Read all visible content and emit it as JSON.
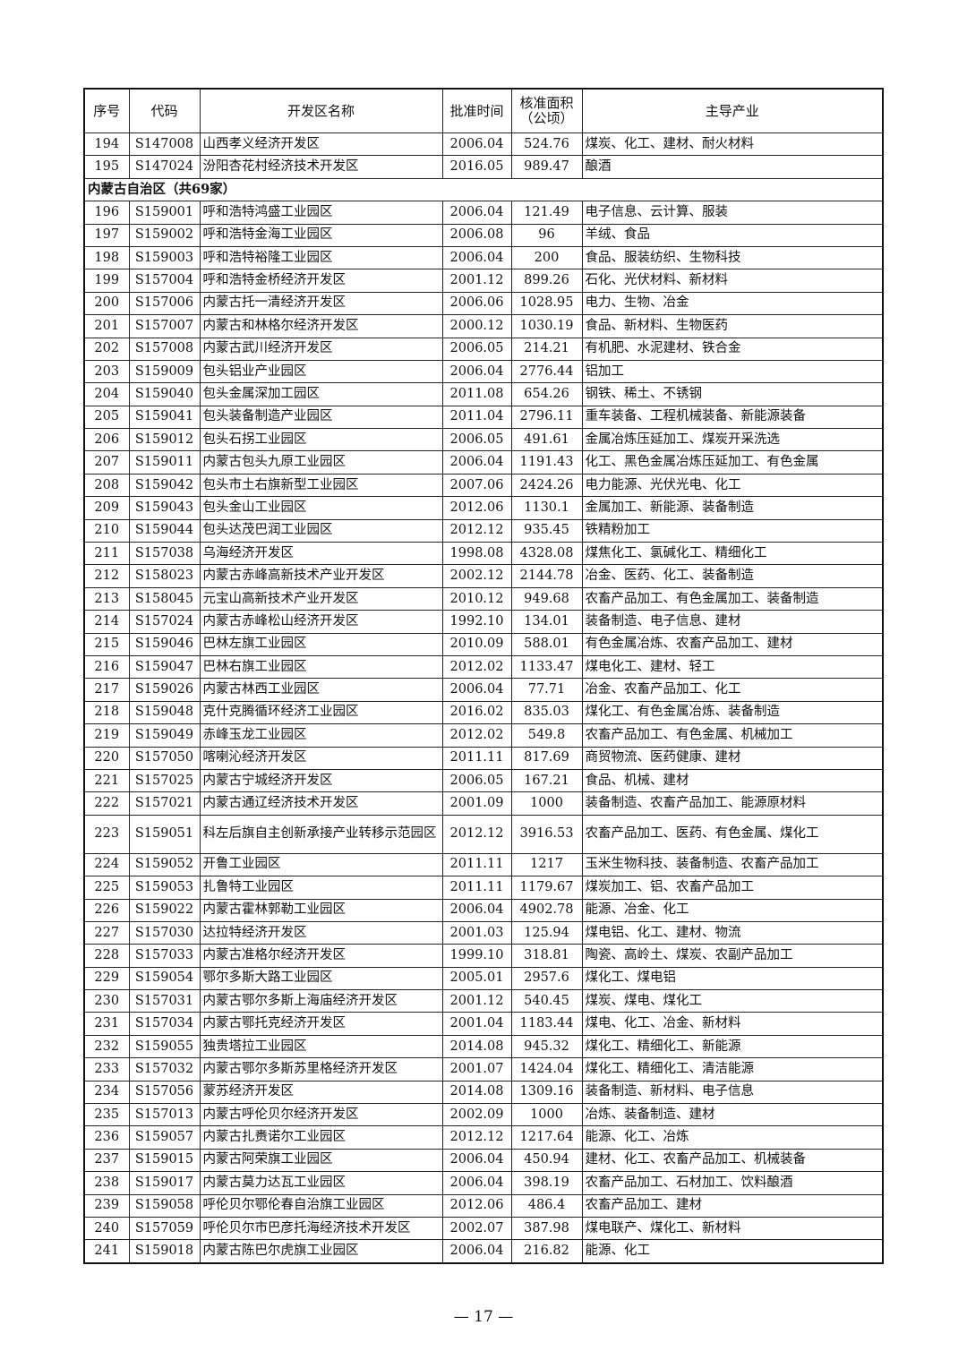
{
  "headers": [
    "序号",
    "代码",
    "开发区名称",
    "批准时间",
    "核准面积（公顷）",
    "主导产业"
  ],
  "rows": [
    {
      "no": "194",
      "code": "S147008",
      "name": "山西孝义经济开发区",
      "date": "2006.04",
      "area": "524.76",
      "industry": "煤炭、化工、建材、耐火材料"
    },
    {
      "no": "195",
      "code": "S147024",
      "name": "汾阳杏花村经济技术开发区",
      "date": "2016.05",
      "area": "989.47",
      "industry": "酿酒"
    },
    {
      "section": "内蒙古自治区（共69家）"
    },
    {
      "no": "196",
      "code": "S159001",
      "name": "呼和浩特鸿盛工业园区",
      "date": "2006.04",
      "area": "121.49",
      "industry": "电子信息、云计算、服装"
    },
    {
      "no": "197",
      "code": "S159002",
      "name": "呼和浩特金海工业园区",
      "date": "2006.08",
      "area": "96",
      "industry": "羊绒、食品"
    },
    {
      "no": "198",
      "code": "S159003",
      "name": "呼和浩特裕隆工业园区",
      "date": "2006.04",
      "area": "200",
      "industry": "食品、服装纺织、生物科技"
    },
    {
      "no": "199",
      "code": "S157004",
      "name": "呼和浩特金桥经济开发区",
      "date": "2001.12",
      "area": "899.26",
      "industry": "石化、光伏材料、新材料"
    },
    {
      "no": "200",
      "code": "S157006",
      "name": "内蒙古托一清经济开发区",
      "date": "2006.06",
      "area": "1028.95",
      "industry": "电力、生物、冶金"
    },
    {
      "no": "201",
      "code": "S157007",
      "name": "内蒙古和林格尔经济开发区",
      "date": "2000.12",
      "area": "1030.19",
      "industry": "食品、新材料、生物医药"
    },
    {
      "no": "202",
      "code": "S157008",
      "name": "内蒙古武川经济开发区",
      "date": "2006.05",
      "area": "214.21",
      "industry": "有机肥、水泥建材、铁合金"
    },
    {
      "no": "203",
      "code": "S159009",
      "name": "包头铝业产业园区",
      "date": "2006.04",
      "area": "2776.44",
      "industry": "铝加工"
    },
    {
      "no": "204",
      "code": "S159040",
      "name": "包头金属深加工园区",
      "date": "2011.08",
      "area": "654.26",
      "industry": "钢铁、稀土、不锈钢"
    },
    {
      "no": "205",
      "code": "S159041",
      "name": "包头装备制造产业园区",
      "date": "2011.04",
      "area": "2796.11",
      "industry": "重车装备、工程机械装备、新能源装备"
    },
    {
      "no": "206",
      "code": "S159012",
      "name": "包头石拐工业园区",
      "date": "2006.05",
      "area": "491.61",
      "industry": "金属冶炼压延加工、煤炭开采洗选"
    },
    {
      "no": "207",
      "code": "S159011",
      "name": "内蒙古包头九原工业园区",
      "date": "2006.04",
      "area": "1191.43",
      "industry": "化工、黑色金属冶炼压延加工、有色金属"
    },
    {
      "no": "208",
      "code": "S159042",
      "name": "包头市土右旗新型工业园区",
      "date": "2007.06",
      "area": "2424.26",
      "industry": "电力能源、光伏光电、化工"
    },
    {
      "no": "209",
      "code": "S159043",
      "name": "包头金山工业园区",
      "date": "2012.06",
      "area": "1130.1",
      "industry": "金属加工、新能源、装备制造"
    },
    {
      "no": "210",
      "code": "S159044",
      "name": "包头达茂巴润工业园区",
      "date": "2012.12",
      "area": "935.45",
      "industry": "铁精粉加工"
    },
    {
      "no": "211",
      "code": "S157038",
      "name": "乌海经济开发区",
      "date": "1998.08",
      "area": "4328.08",
      "industry": "煤焦化工、氯碱化工、精细化工"
    },
    {
      "no": "212",
      "code": "S158023",
      "name": "内蒙古赤峰高新技术产业开发区",
      "date": "2002.12",
      "area": "2144.78",
      "industry": "冶金、医药、化工、装备制造"
    },
    {
      "no": "213",
      "code": "S158045",
      "name": "元宝山高新技术产业开发区",
      "date": "2010.12",
      "area": "949.68",
      "industry": "农畜产品加工、有色金属加工、装备制造"
    },
    {
      "no": "214",
      "code": "S157024",
      "name": "内蒙古赤峰松山经济开发区",
      "date": "1992.10",
      "area": "134.01",
      "industry": "装备制造、电子信息、建材"
    },
    {
      "no": "215",
      "code": "S159046",
      "name": "巴林左旗工业园区",
      "date": "2010.09",
      "area": "588.01",
      "industry": "有色金属冶炼、农畜产品加工、建材"
    },
    {
      "no": "216",
      "code": "S159047",
      "name": "巴林右旗工业园区",
      "date": "2012.02",
      "area": "1133.47",
      "industry": "煤电化工、建材、轻工"
    },
    {
      "no": "217",
      "code": "S159026",
      "name": "内蒙古林西工业园区",
      "date": "2006.04",
      "area": "77.71",
      "industry": "冶金、农畜产品加工、化工"
    },
    {
      "no": "218",
      "code": "S159048",
      "name": "克什克腾循环经济工业园区",
      "date": "2016.02",
      "area": "835.03",
      "industry": "煤化工、有色金属冶炼、装备制造"
    },
    {
      "no": "219",
      "code": "S159049",
      "name": "赤峰玉龙工业园区",
      "date": "2012.02",
      "area": "549.8",
      "industry": "农畜产品加工、有色金属、机械加工"
    },
    {
      "no": "220",
      "code": "S157050",
      "name": "喀喇沁经济开发区",
      "date": "2011.11",
      "area": "817.69",
      "industry": "商贸物流、医药健康、建材"
    },
    {
      "no": "221",
      "code": "S157025",
      "name": "内蒙古宁城经济开发区",
      "date": "2006.05",
      "area": "167.21",
      "industry": "食品、机械、建材"
    },
    {
      "no": "222",
      "code": "S157021",
      "name": "内蒙古通辽经济技术开发区",
      "date": "2001.09",
      "area": "1000",
      "industry": "装备制造、农畜产品加工、能源原材料"
    },
    {
      "no": "223",
      "code": "S159051",
      "name": "科左后旗自主创新承接产业转移示范园区",
      "date": "2012.12",
      "area": "3916.53",
      "industry": "农畜产品加工、医药、有色金属、煤化工",
      "wrap": true
    },
    {
      "no": "224",
      "code": "S159052",
      "name": "开鲁工业园区",
      "date": "2011.11",
      "area": "1217",
      "industry": "玉米生物科技、装备制造、农畜产品加工"
    },
    {
      "no": "225",
      "code": "S159053",
      "name": "扎鲁特工业园区",
      "date": "2011.11",
      "area": "1179.67",
      "industry": "煤炭加工、铝、农畜产品加工"
    },
    {
      "no": "226",
      "code": "S159022",
      "name": "内蒙古霍林郭勒工业园区",
      "date": "2006.04",
      "area": "4902.78",
      "industry": "能源、冶金、化工"
    },
    {
      "no": "227",
      "code": "S157030",
      "name": "达拉特经济开发区",
      "date": "2001.03",
      "area": "125.94",
      "industry": "煤电铝、化工、建材、物流"
    },
    {
      "no": "228",
      "code": "S157033",
      "name": "内蒙古准格尔经济开发区",
      "date": "1999.10",
      "area": "318.81",
      "industry": "陶瓷、高岭土、煤炭、农副产品加工"
    },
    {
      "no": "229",
      "code": "S159054",
      "name": "鄂尔多斯大路工业园区",
      "date": "2005.01",
      "area": "2957.6",
      "industry": "煤化工、煤电铝"
    },
    {
      "no": "230",
      "code": "S157031",
      "name": "内蒙古鄂尔多斯上海庙经济开发区",
      "date": "2001.12",
      "area": "540.45",
      "industry": "煤炭、煤电、煤化工"
    },
    {
      "no": "231",
      "code": "S157034",
      "name": "内蒙古鄂托克经济开发区",
      "date": "2001.04",
      "area": "1183.44",
      "industry": "煤电、化工、冶金、新材料"
    },
    {
      "no": "232",
      "code": "S159055",
      "name": "独贵塔拉工业园区",
      "date": "2014.08",
      "area": "945.32",
      "industry": "煤化工、精细化工、新能源"
    },
    {
      "no": "233",
      "code": "S157032",
      "name": "内蒙古鄂尔多斯苏里格经济开发区",
      "date": "2001.07",
      "area": "1424.04",
      "industry": "煤化工、精细化工、清洁能源"
    },
    {
      "no": "234",
      "code": "S157056",
      "name": "蒙苏经济开发区",
      "date": "2014.08",
      "area": "1309.16",
      "industry": "装备制造、新材料、电子信息"
    },
    {
      "no": "235",
      "code": "S157013",
      "name": "内蒙古呼伦贝尔经济开发区",
      "date": "2002.09",
      "area": "1000",
      "industry": "冶炼、装备制造、建材"
    },
    {
      "no": "236",
      "code": "S159057",
      "name": "内蒙古扎赉诺尔工业园区",
      "date": "2012.12",
      "area": "1217.64",
      "industry": "能源、化工、冶炼"
    },
    {
      "no": "237",
      "code": "S159015",
      "name": "内蒙古阿荣旗工业园区",
      "date": "2006.04",
      "area": "450.94",
      "industry": "建材、化工、农畜产品加工、机械装备"
    },
    {
      "no": "238",
      "code": "S159017",
      "name": "内蒙古莫力达瓦工业园区",
      "date": "2006.04",
      "area": "398.19",
      "industry": "农畜产品加工、石材加工、饮料酿酒"
    },
    {
      "no": "239",
      "code": "S159058",
      "name": "呼伦贝尔鄂伦春自治旗工业园区",
      "date": "2012.06",
      "area": "486.4",
      "industry": "农畜产品加工、建材"
    },
    {
      "no": "240",
      "code": "S157059",
      "name": "呼伦贝尔市巴彦托海经济技术开发区",
      "date": "2002.07",
      "area": "387.98",
      "industry": "煤电联产、煤化工、新材料"
    },
    {
      "no": "241",
      "code": "S159018",
      "name": "内蒙古陈巴尔虎旗工业园区",
      "date": "2006.04",
      "area": "216.82",
      "industry": "能源、化工"
    }
  ],
  "page_number": "— 17 —"
}
